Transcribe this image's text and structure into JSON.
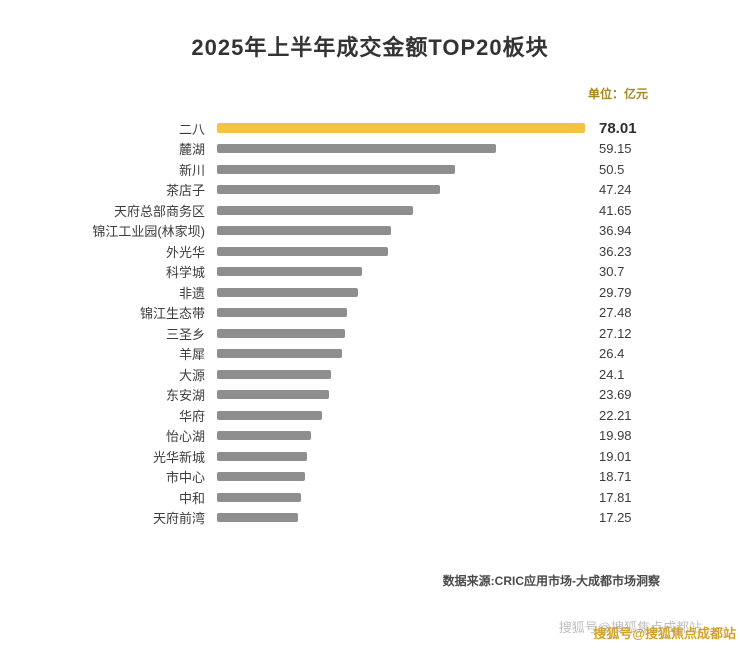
{
  "chart": {
    "title": "2025年上半年成交金额TOP20板块",
    "unit_label": "单位：亿元",
    "source": "数据来源:CRIC应用市场-大成都市场洞察"
  },
  "watermark": {
    "text": "搜狐号@搜狐焦点成都站"
  },
  "chart_data": {
    "type": "bar",
    "orientation": "horizontal",
    "title": "2025年上半年成交金额TOP20板块",
    "unit": "亿元",
    "categories": [
      "二八",
      "麓湖",
      "新川",
      "茶店子",
      "天府总部商务区",
      "锦江工业园(林家坝)",
      "外光华",
      "科学城",
      "非遗",
      "锦江生态带",
      "三圣乡",
      "羊犀",
      "大源",
      "东安湖",
      "华府",
      "怡心湖",
      "光华新城",
      "市中心",
      "中和",
      "天府前湾"
    ],
    "values": [
      78.01,
      59.15,
      50.5,
      47.24,
      41.65,
      36.94,
      36.23,
      30.7,
      29.79,
      27.48,
      27.12,
      26.4,
      24.1,
      23.69,
      22.21,
      19.98,
      19.01,
      18.71,
      17.81,
      17.25
    ],
    "highlight_index": 0,
    "bar_color": "#8e8e8e",
    "highlight_color": "#f6c242",
    "xlim": [
      0,
      78.01
    ],
    "grid": false,
    "legend": false,
    "value_labels_position": "right-column"
  }
}
